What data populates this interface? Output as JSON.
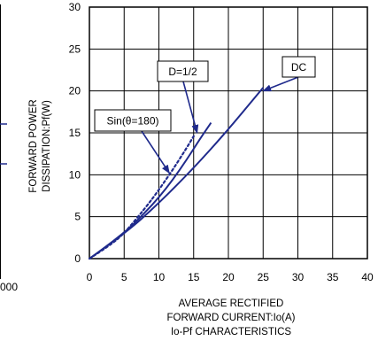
{
  "left_fragment": {
    "tick_label": "000"
  },
  "chart_data": {
    "type": "line",
    "title": "Io-Pf CHARACTERISTICS",
    "xlabel": [
      "AVERAGE RECTIFIED",
      "FORWARD CURRENT:Io(A)"
    ],
    "ylabel": [
      "FORWARD POWER",
      "DISSIPATION:Pf(W)"
    ],
    "xlim": [
      0,
      40
    ],
    "ylim": [
      0,
      30
    ],
    "xticks": [
      "0",
      "5",
      "10",
      "15",
      "20",
      "25",
      "30",
      "35",
      "40"
    ],
    "yticks": [
      "0",
      "5",
      "10",
      "15",
      "20",
      "25",
      "30"
    ],
    "grid": true,
    "colors": {
      "curve": "#1f2a8c",
      "grid": "#000000",
      "border": "#000000"
    },
    "series": [
      {
        "name": "DC",
        "style": "solid",
        "x": [
          0,
          5,
          10,
          15,
          20,
          25
        ],
        "y": [
          0,
          2.9,
          6.6,
          10.8,
          15.4,
          20.4
        ]
      },
      {
        "name": "D=1/2",
        "style": "solid",
        "x": [
          0,
          5,
          8,
          10,
          12,
          14,
          16,
          17.5
        ],
        "y": [
          0,
          3.0,
          5.5,
          7.3,
          9.4,
          11.8,
          14.4,
          16.2
        ]
      },
      {
        "name": "Sin(θ=180)",
        "style": "dotted",
        "x": [
          0,
          3,
          5,
          8,
          10,
          12,
          14,
          15
        ],
        "y": [
          0,
          1.6,
          3.0,
          6.0,
          8.2,
          10.6,
          13.2,
          14.6
        ]
      }
    ],
    "annotations": [
      {
        "label": "DC",
        "series": "DC",
        "arrow_to": [
          25,
          20
        ]
      },
      {
        "label": "D=1/2",
        "series": "D=1/2",
        "arrow_to": [
          15.5,
          15
        ]
      },
      {
        "label": "Sin(θ=180)",
        "series": "Sin(θ=180)",
        "arrow_to": [
          11.5,
          10.2
        ]
      }
    ]
  }
}
